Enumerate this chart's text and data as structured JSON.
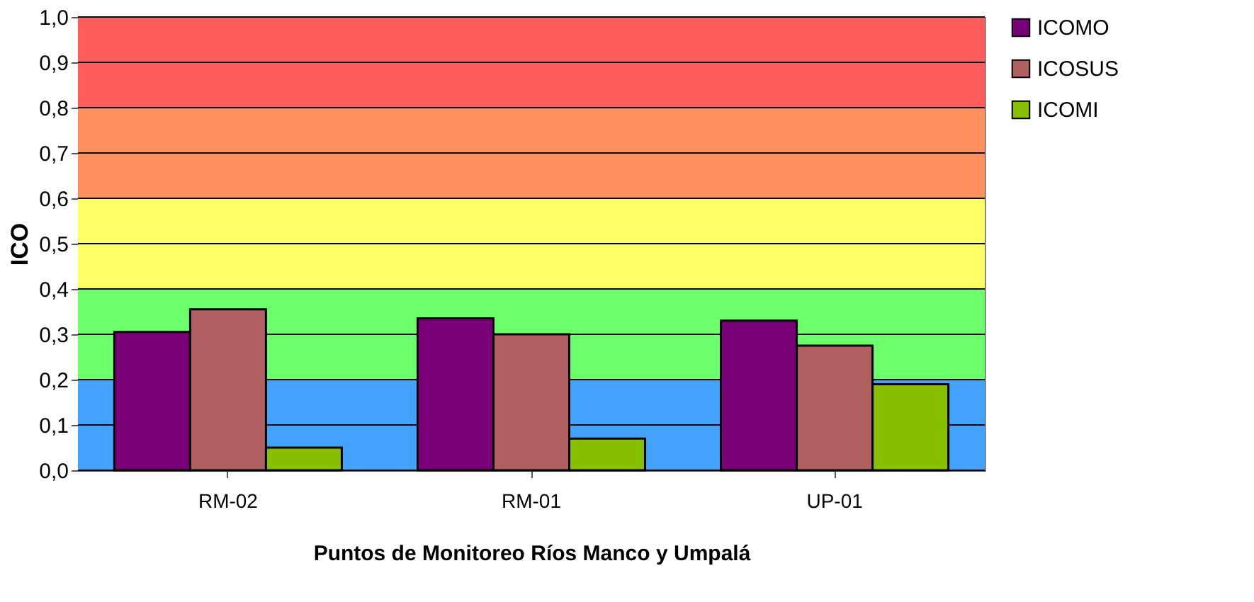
{
  "chart_data": {
    "type": "bar",
    "xlabel": "Puntos de Monitoreo Ríos Manco y Umpalá",
    "ylabel": "ICO",
    "categories": [
      "RM-02",
      "RM-01",
      "UP-01"
    ],
    "series": [
      {
        "name": "ICOMO",
        "color": "#7a0078",
        "values": [
          0.305,
          0.335,
          0.33
        ]
      },
      {
        "name": "ICOSUS",
        "color": "#b06060",
        "values": [
          0.355,
          0.3,
          0.275
        ]
      },
      {
        "name": "ICOMI",
        "color": "#88c000",
        "values": [
          0.05,
          0.07,
          0.19
        ]
      }
    ],
    "ylim": [
      0,
      1
    ],
    "yticks": [
      {
        "value": 0,
        "label": "0,0"
      },
      {
        "value": 0.1,
        "label": "0,1"
      },
      {
        "value": 0.2,
        "label": "0,2"
      },
      {
        "value": 0.3,
        "label": "0,3"
      },
      {
        "value": 0.4,
        "label": "0,4"
      },
      {
        "value": 0.5,
        "label": "0,5"
      },
      {
        "value": 0.6,
        "label": "0,6"
      },
      {
        "value": 0.7,
        "label": "0,7"
      },
      {
        "value": 0.8,
        "label": "0,8"
      },
      {
        "value": 0.9,
        "label": "0,9"
      },
      {
        "value": 1,
        "label": "1,0"
      }
    ],
    "bands": [
      {
        "axis": "y",
        "from": 0,
        "to": 0.2,
        "color": "#44a2ff"
      },
      {
        "axis": "y",
        "from": 0.2,
        "to": 0.4,
        "color": "#6cff6c"
      },
      {
        "axis": "y",
        "from": 0.4,
        "to": 0.6,
        "color": "#ffff66"
      },
      {
        "axis": "y",
        "from": 0.6,
        "to": 0.8,
        "color": "#ff9060"
      },
      {
        "axis": "y",
        "from": 0.8,
        "to": 1,
        "color": "#ff5c5c"
      }
    ],
    "grid": "y",
    "legend": "right"
  }
}
